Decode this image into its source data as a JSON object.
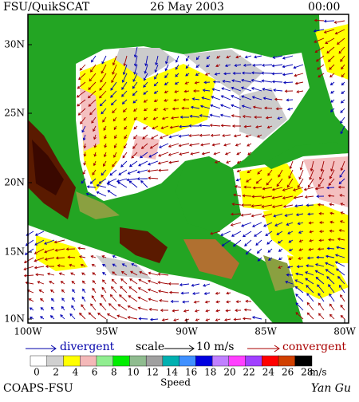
{
  "header": {
    "source": "FSU/QuikSCAT",
    "date": "26 May 2003",
    "time": "00:00"
  },
  "map": {
    "lat_labels": [
      "30N",
      "25N",
      "20N",
      "15N",
      "10N"
    ],
    "lon_labels": [
      "100W",
      "95W",
      "90W",
      "85W",
      "80W"
    ]
  },
  "legend": {
    "divergent": "divergent",
    "scale": "scale",
    "scale_value": "10 m/s",
    "convergent": "convergent"
  },
  "colorbar": {
    "labels": [
      "0",
      "2",
      "4",
      "6",
      "8",
      "10",
      "12",
      "14",
      "16",
      "18",
      "20",
      "22",
      "24",
      "26",
      "28"
    ],
    "unit": "m/s",
    "title": "Speed"
  },
  "footer": {
    "left": "COAPS-FSU",
    "right": "Yan Gu"
  }
}
